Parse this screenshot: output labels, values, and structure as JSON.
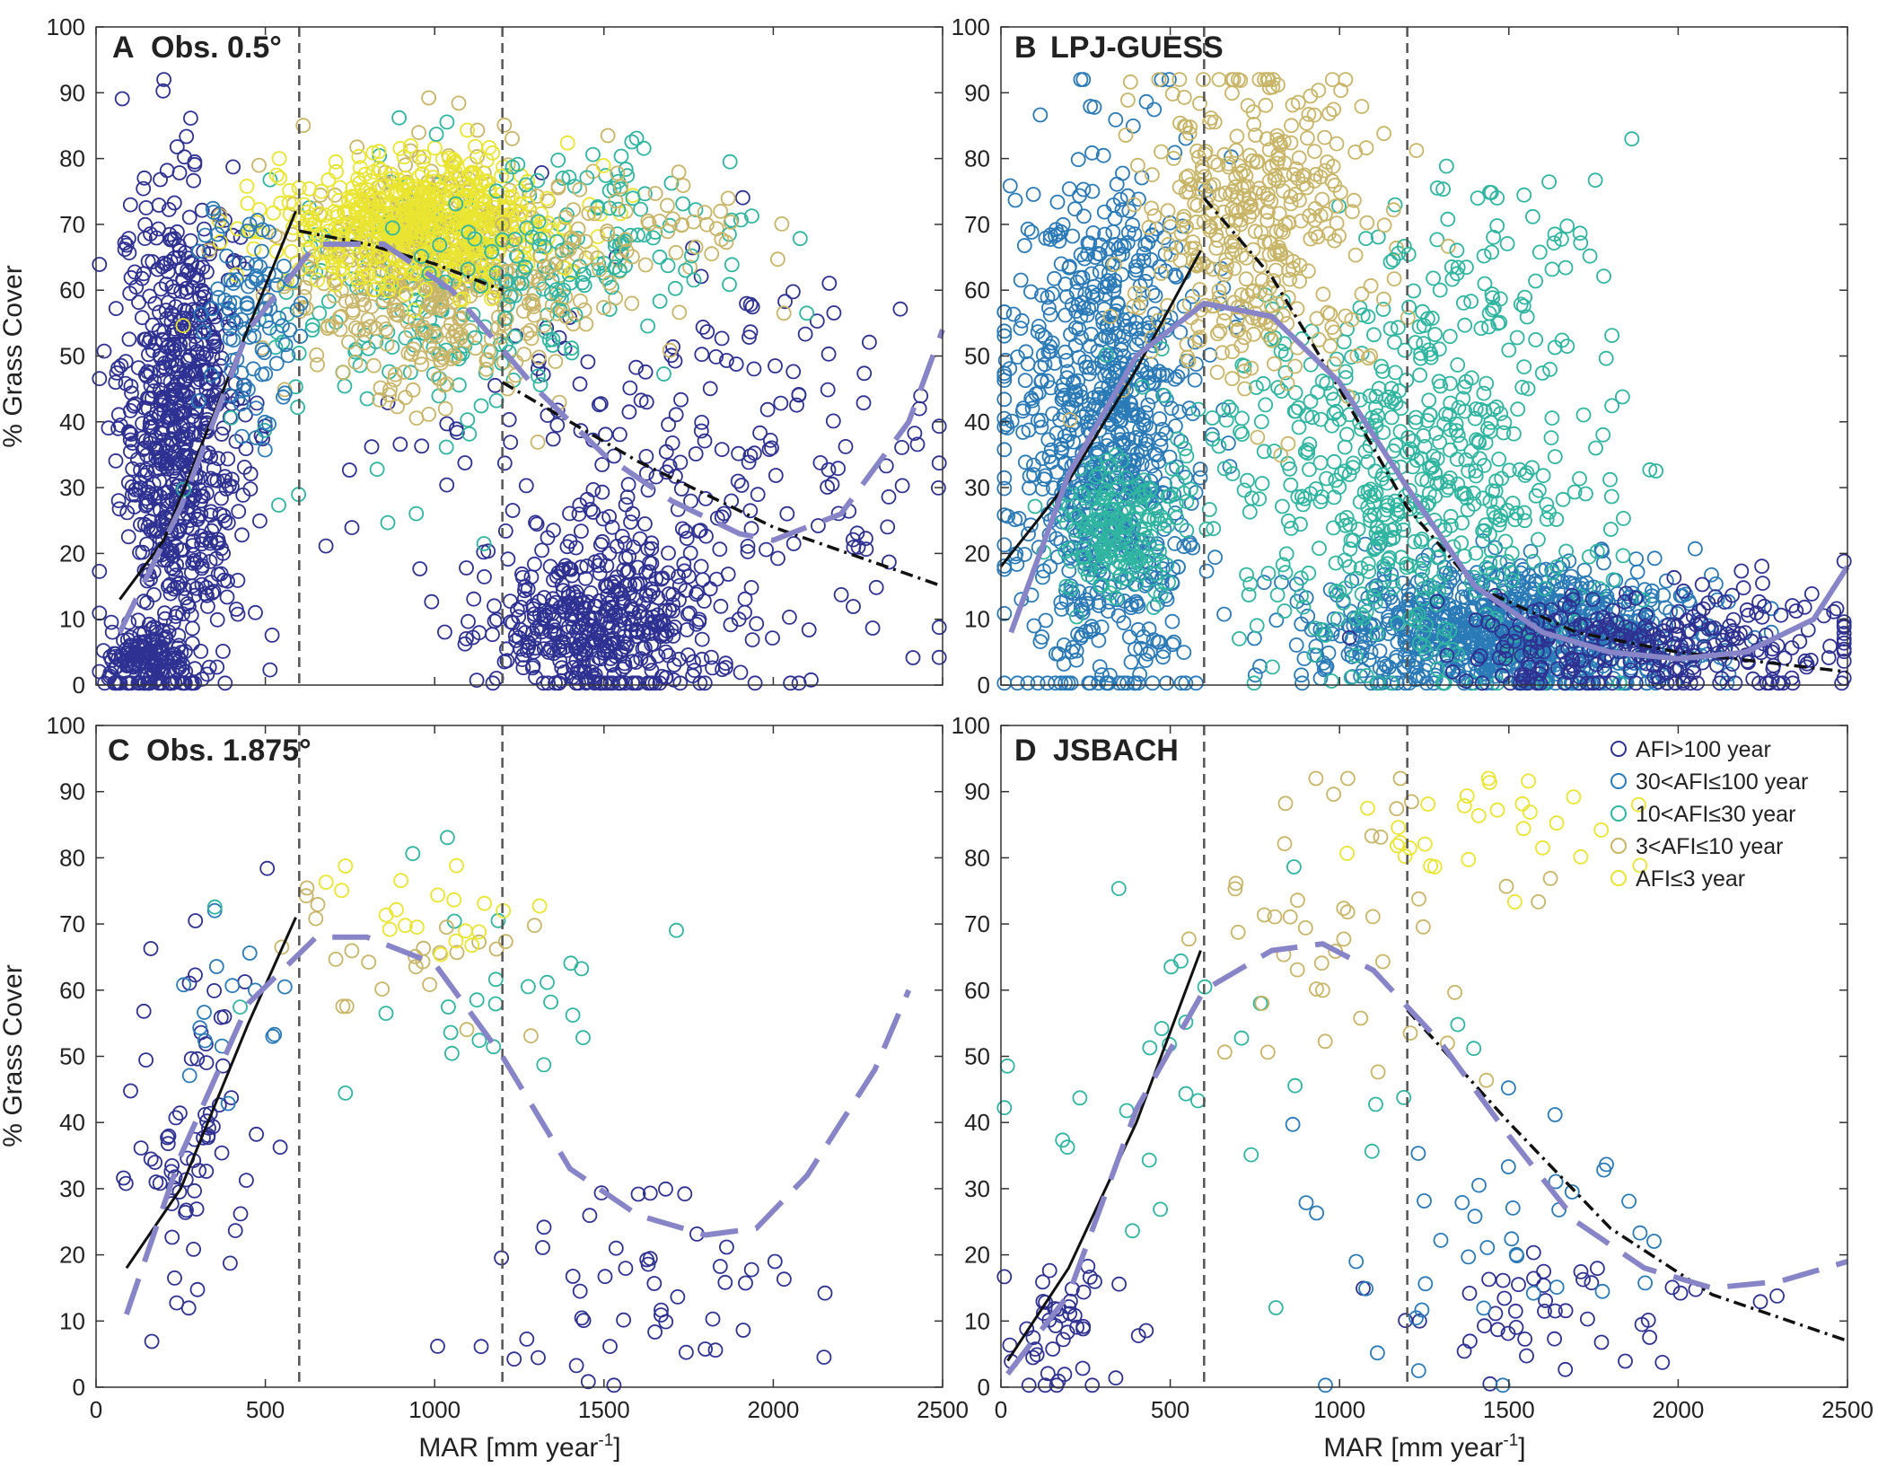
{
  "figure": {
    "xlabel_main": "MAR [mm year",
    "xlabel_exp": "-1",
    "xlabel_end": "]",
    "ylabel": "% Grass Cover"
  },
  "legend": {
    "title": "",
    "entries": [
      {
        "label": "AFI>100 year",
        "color": "#2e3192"
      },
      {
        "label": "30<AFI≤100 year",
        "color": "#2a7ab8"
      },
      {
        "label": "10<AFI≤30 year",
        "color": "#2fb5a0"
      },
      {
        "label": "3<AFI≤10 year",
        "color": "#c8b567"
      },
      {
        "label": "AFI≤3 year",
        "color": "#e9e530"
      }
    ]
  },
  "chart_data": [
    {
      "type": "scatter",
      "panel": "A",
      "title": "Obs. 0.5°",
      "xlabel": "MAR [mm year-1]",
      "ylabel": "% Grass Cover",
      "xlim": [
        0,
        2500
      ],
      "ylim": [
        0,
        100
      ],
      "xticks": [
        0,
        500,
        1000,
        1500,
        2000,
        2500
      ],
      "yticks": [
        0,
        10,
        20,
        30,
        40,
        50,
        60,
        70,
        80,
        90,
        100
      ],
      "vlines": [
        600,
        1200
      ],
      "clusters": [
        {
          "class": 0,
          "n": 700,
          "cx": 250,
          "sx": 90,
          "cy": 40,
          "sy": 18
        },
        {
          "class": 0,
          "n": 160,
          "cx": 150,
          "sx": 60,
          "cy": 3,
          "sy": 3
        },
        {
          "class": 0,
          "n": 420,
          "cx": 1500,
          "sx": 170,
          "cy": 9,
          "sy": 6
        },
        {
          "class": 0,
          "n": 240,
          "cx": 1750,
          "sx": 400,
          "cy": 32,
          "sy": 14
        },
        {
          "class": 2,
          "n": 180,
          "cx": 1000,
          "sx": 250,
          "cy": 58,
          "sy": 12
        },
        {
          "class": 3,
          "n": 450,
          "cx": 1000,
          "sx": 220,
          "cy": 63,
          "sy": 9
        },
        {
          "class": 4,
          "n": 550,
          "cx": 950,
          "sx": 220,
          "cy": 70,
          "sy": 5
        },
        {
          "class": 2,
          "n": 120,
          "cx": 1450,
          "sx": 250,
          "cy": 68,
          "sy": 6
        },
        {
          "class": 3,
          "n": 60,
          "cx": 1550,
          "sx": 200,
          "cy": 69,
          "sy": 4
        },
        {
          "class": 1,
          "n": 90,
          "cx": 450,
          "sx": 80,
          "cy": 58,
          "sy": 8
        }
      ],
      "lines": [
        {
          "style": "solid",
          "x": [
            70,
            200,
            400,
            590
          ],
          "y": [
            13,
            22,
            48,
            72
          ]
        },
        {
          "style": "dashdot",
          "x": [
            600,
            800,
            1000,
            1200
          ],
          "y": [
            69,
            67,
            64,
            60
          ]
        },
        {
          "style": "dashdot",
          "x": [
            1200,
            1600,
            2000,
            2500
          ],
          "y": [
            46,
            34,
            24,
            15
          ]
        },
        {
          "style": "dashed",
          "x": [
            70,
            250,
            450,
            650,
            850,
            1050,
            1300,
            1500,
            1700,
            1900,
            2000,
            2200,
            2400,
            2500
          ],
          "y": [
            8,
            27,
            54,
            67,
            67,
            60,
            45,
            35,
            28,
            23,
            22,
            26,
            40,
            54
          ]
        }
      ]
    },
    {
      "type": "scatter",
      "panel": "B",
      "title": "LPJ-GUESS",
      "xlabel": "MAR [mm year-1]",
      "ylabel": "% Grass Cover",
      "xlim": [
        0,
        2500
      ],
      "ylim": [
        0,
        100
      ],
      "xticks": [
        0,
        500,
        1000,
        1500,
        2000,
        2500
      ],
      "yticks": [
        0,
        10,
        20,
        30,
        40,
        50,
        60,
        70,
        80,
        90,
        100
      ],
      "vlines": [
        600,
        1200
      ],
      "clusters": [
        {
          "class": 1,
          "n": 850,
          "cx": 300,
          "sx": 140,
          "cy": 38,
          "sy": 20
        },
        {
          "class": 1,
          "n": 900,
          "cx": 1500,
          "sx": 280,
          "cy": 8,
          "sy": 5
        },
        {
          "class": 2,
          "n": 180,
          "cx": 350,
          "sx": 90,
          "cy": 25,
          "sy": 5
        },
        {
          "class": 2,
          "n": 550,
          "cx": 1200,
          "sx": 280,
          "cy": 30,
          "sy": 15
        },
        {
          "class": 3,
          "n": 380,
          "cx": 750,
          "sx": 170,
          "cy": 70,
          "sy": 12
        },
        {
          "class": 0,
          "n": 300,
          "cx": 1950,
          "sx": 300,
          "cy": 6,
          "sy": 4
        },
        {
          "class": 2,
          "n": 60,
          "cx": 1450,
          "sx": 200,
          "cy": 62,
          "sy": 10
        }
      ],
      "lines": [
        {
          "style": "solid",
          "x": [
            0,
            200,
            400,
            590
          ],
          "y": [
            18,
            31,
            48,
            66
          ]
        },
        {
          "style": "dashdot",
          "x": [
            600,
            800,
            1000,
            1200,
            1400,
            1700,
            2000,
            2500
          ],
          "y": [
            74,
            62,
            45,
            27,
            15,
            8,
            5,
            2
          ]
        },
        {
          "style": "solidthick",
          "x": [
            30,
            200,
            400,
            600,
            800,
            1000,
            1200,
            1400,
            1600,
            1800,
            2000,
            2200,
            2400,
            2500
          ],
          "y": [
            8,
            32,
            50,
            58,
            56,
            46,
            30,
            15,
            8,
            5,
            4,
            5,
            10,
            18
          ]
        }
      ]
    },
    {
      "type": "scatter",
      "panel": "C",
      "title": "Obs. 1.875°",
      "xlabel": "MAR [mm year-1]",
      "ylabel": "% Grass Cover",
      "xlim": [
        0,
        2500
      ],
      "ylim": [
        0,
        100
      ],
      "xticks": [
        0,
        500,
        1000,
        1500,
        2000,
        2500
      ],
      "yticks": [
        0,
        10,
        20,
        30,
        40,
        50,
        60,
        70,
        80,
        90,
        100
      ],
      "vlines": [
        600,
        1200
      ],
      "clusters": [
        {
          "class": 0,
          "n": 70,
          "cx": 300,
          "sx": 110,
          "cy": 40,
          "sy": 15
        },
        {
          "class": 0,
          "n": 50,
          "cx": 1600,
          "sx": 250,
          "cy": 12,
          "sy": 10
        },
        {
          "class": 1,
          "n": 15,
          "cx": 400,
          "sx": 80,
          "cy": 55,
          "sy": 10
        },
        {
          "class": 2,
          "n": 25,
          "cx": 1100,
          "sx": 350,
          "cy": 62,
          "sy": 8
        },
        {
          "class": 3,
          "n": 25,
          "cx": 900,
          "sx": 200,
          "cy": 64,
          "sy": 6
        },
        {
          "class": 4,
          "n": 20,
          "cx": 1000,
          "sx": 180,
          "cy": 71,
          "sy": 4
        }
      ],
      "lines": [
        {
          "style": "solid",
          "x": [
            90,
            250,
            450,
            590
          ],
          "y": [
            18,
            30,
            55,
            71
          ]
        },
        {
          "style": "dashed",
          "x": [
            90,
            250,
            450,
            650,
            800,
            1000,
            1200,
            1400,
            1600,
            1800,
            1950,
            2100,
            2300,
            2400
          ],
          "y": [
            11,
            35,
            58,
            68,
            68,
            64,
            50,
            33,
            26,
            23,
            24,
            32,
            48,
            60
          ]
        }
      ]
    },
    {
      "type": "scatter",
      "panel": "D",
      "title": "JSBACH",
      "xlabel": "MAR [mm year-1]",
      "ylabel": "% Grass Cover",
      "xlim": [
        0,
        2500
      ],
      "ylim": [
        0,
        100
      ],
      "xticks": [
        0,
        500,
        1000,
        1500,
        2000,
        2500
      ],
      "yticks": [
        0,
        10,
        20,
        30,
        40,
        50,
        60,
        70,
        80,
        90,
        100
      ],
      "vlines": [
        600,
        1200
      ],
      "clusters": [
        {
          "class": 0,
          "n": 45,
          "cx": 150,
          "sx": 100,
          "cy": 8,
          "sy": 6
        },
        {
          "class": 0,
          "n": 45,
          "cx": 1650,
          "sx": 250,
          "cy": 10,
          "sy": 5
        },
        {
          "class": 1,
          "n": 40,
          "cx": 1450,
          "sx": 300,
          "cy": 25,
          "sy": 12
        },
        {
          "class": 2,
          "n": 30,
          "cx": 600,
          "sx": 300,
          "cy": 45,
          "sy": 15
        },
        {
          "class": 3,
          "n": 45,
          "cx": 1050,
          "sx": 250,
          "cy": 68,
          "sy": 12
        },
        {
          "class": 4,
          "n": 30,
          "cx": 1400,
          "sx": 200,
          "cy": 85,
          "sy": 5
        }
      ],
      "lines": [
        {
          "style": "solid",
          "x": [
            20,
            200,
            400,
            590
          ],
          "y": [
            4,
            18,
            40,
            66
          ]
        },
        {
          "style": "dashdot",
          "x": [
            1200,
            1500,
            1800,
            2100,
            2500
          ],
          "y": [
            57,
            40,
            24,
            14,
            7
          ]
        },
        {
          "style": "dashed",
          "x": [
            20,
            200,
            400,
            600,
            800,
            950,
            1100,
            1300,
            1500,
            1700,
            1900,
            2100,
            2300,
            2500
          ],
          "y": [
            2,
            14,
            42,
            60,
            66,
            67,
            63,
            52,
            38,
            25,
            18,
            15,
            16,
            19
          ]
        }
      ]
    }
  ]
}
